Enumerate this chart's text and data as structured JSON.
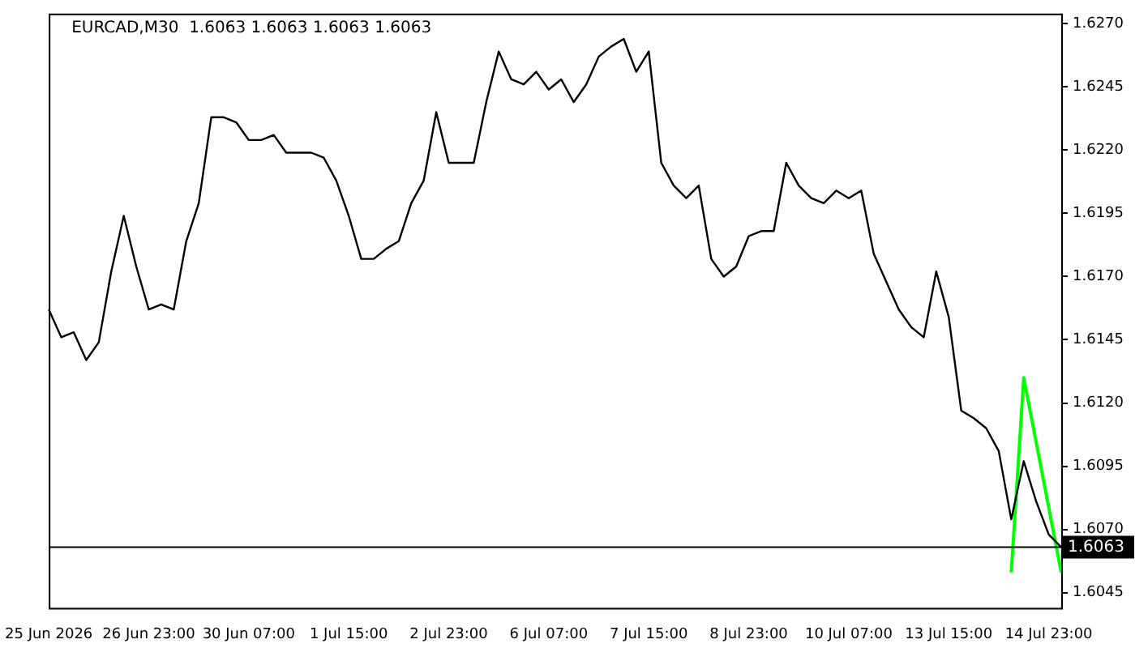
{
  "chart_data": {
    "type": "line",
    "title": "EURCAD,M30  1.6063 1.6063 1.6063 1.6063",
    "categories": [
      "25 Jun 2026",
      null,
      null,
      null,
      null,
      null,
      null,
      null,
      "26 Jun 23:00",
      null,
      null,
      null,
      null,
      null,
      null,
      null,
      "30 Jun 07:00",
      null,
      null,
      null,
      null,
      null,
      null,
      null,
      "1 Jul 15:00",
      null,
      null,
      null,
      null,
      null,
      null,
      null,
      "2 Jul 23:00",
      null,
      null,
      null,
      null,
      null,
      null,
      null,
      "6 Jul 07:00",
      null,
      null,
      null,
      null,
      null,
      null,
      null,
      "7 Jul 15:00",
      null,
      null,
      null,
      null,
      null,
      null,
      null,
      "8 Jul 23:00",
      null,
      null,
      null,
      null,
      null,
      null,
      null,
      "10 Jul 07:00",
      null,
      null,
      null,
      null,
      null,
      null,
      null,
      "13 Jul 15:00",
      null,
      null,
      null,
      null,
      null,
      null,
      null,
      "14 Jul 23:00",
      null
    ],
    "series": [
      {
        "color": "#000000",
        "values": [
          1.6157,
          1.6146,
          1.6148,
          1.6137,
          1.6144,
          1.6172,
          1.6194,
          1.6174,
          1.6157,
          1.6159,
          1.6157,
          1.6184,
          1.6199,
          1.6233,
          1.6233,
          1.6231,
          1.6224,
          1.6224,
          1.6226,
          1.6219,
          1.6219,
          1.6219,
          1.6217,
          1.6208,
          1.6194,
          1.6177,
          1.6177,
          1.6181,
          1.6184,
          1.6199,
          1.6208,
          1.6235,
          1.6215,
          1.6215,
          1.6215,
          1.6239,
          1.6259,
          1.6248,
          1.6246,
          1.6251,
          1.6244,
          1.6248,
          1.6239,
          1.6246,
          1.6257,
          1.6261,
          1.6264,
          1.6251,
          1.6259,
          1.6215,
          1.6206,
          1.6201,
          1.6206,
          1.6177,
          1.617,
          1.6174,
          1.6186,
          1.6188,
          1.6188,
          1.6215,
          1.6206,
          1.6201,
          1.6199,
          1.6204,
          1.6201,
          1.6204,
          1.6179,
          1.6168,
          1.6157,
          1.615,
          1.6146,
          1.6172,
          1.6154,
          1.6117,
          1.6114,
          1.611,
          1.6101,
          1.6074,
          1.6097,
          1.6081,
          1.6068,
          1.6063
        ]
      },
      {
        "color": "#00ff00",
        "values": [
          null,
          null,
          null,
          null,
          null,
          null,
          null,
          null,
          null,
          null,
          null,
          null,
          null,
          null,
          null,
          null,
          null,
          null,
          null,
          null,
          null,
          null,
          null,
          null,
          null,
          null,
          null,
          null,
          null,
          null,
          null,
          null,
          null,
          null,
          null,
          null,
          null,
          null,
          null,
          null,
          null,
          null,
          null,
          null,
          null,
          null,
          null,
          null,
          null,
          null,
          null,
          null,
          null,
          null,
          null,
          null,
          null,
          null,
          null,
          null,
          null,
          null,
          null,
          null,
          null,
          null,
          null,
          null,
          null,
          null,
          null,
          null,
          null,
          null,
          null,
          null,
          null,
          1.6053,
          1.613,
          null,
          null,
          1.6053
        ]
      }
    ],
    "ylim": [
      1.6039,
      1.6274
    ],
    "yticks": [
      1.6045,
      {
        "value": 1.607,
        "label": "1.6070"
      },
      1.6095,
      {
        "value": 1.612,
        "label": "1.6120"
      },
      1.6145,
      {
        "value": 1.617,
        "label": "1.6170"
      },
      1.6195,
      {
        "value": 1.622,
        "label": "1.6220"
      },
      1.6245,
      {
        "value": 1.627,
        "label": "1.6270"
      }
    ],
    "ref_lines": [
      {
        "axis": "y",
        "value": 1.6063,
        "label": "1.6063",
        "color": "#000000"
      }
    ],
    "grid": false,
    "legend": false,
    "marker": "none",
    "line_style": "solid"
  }
}
